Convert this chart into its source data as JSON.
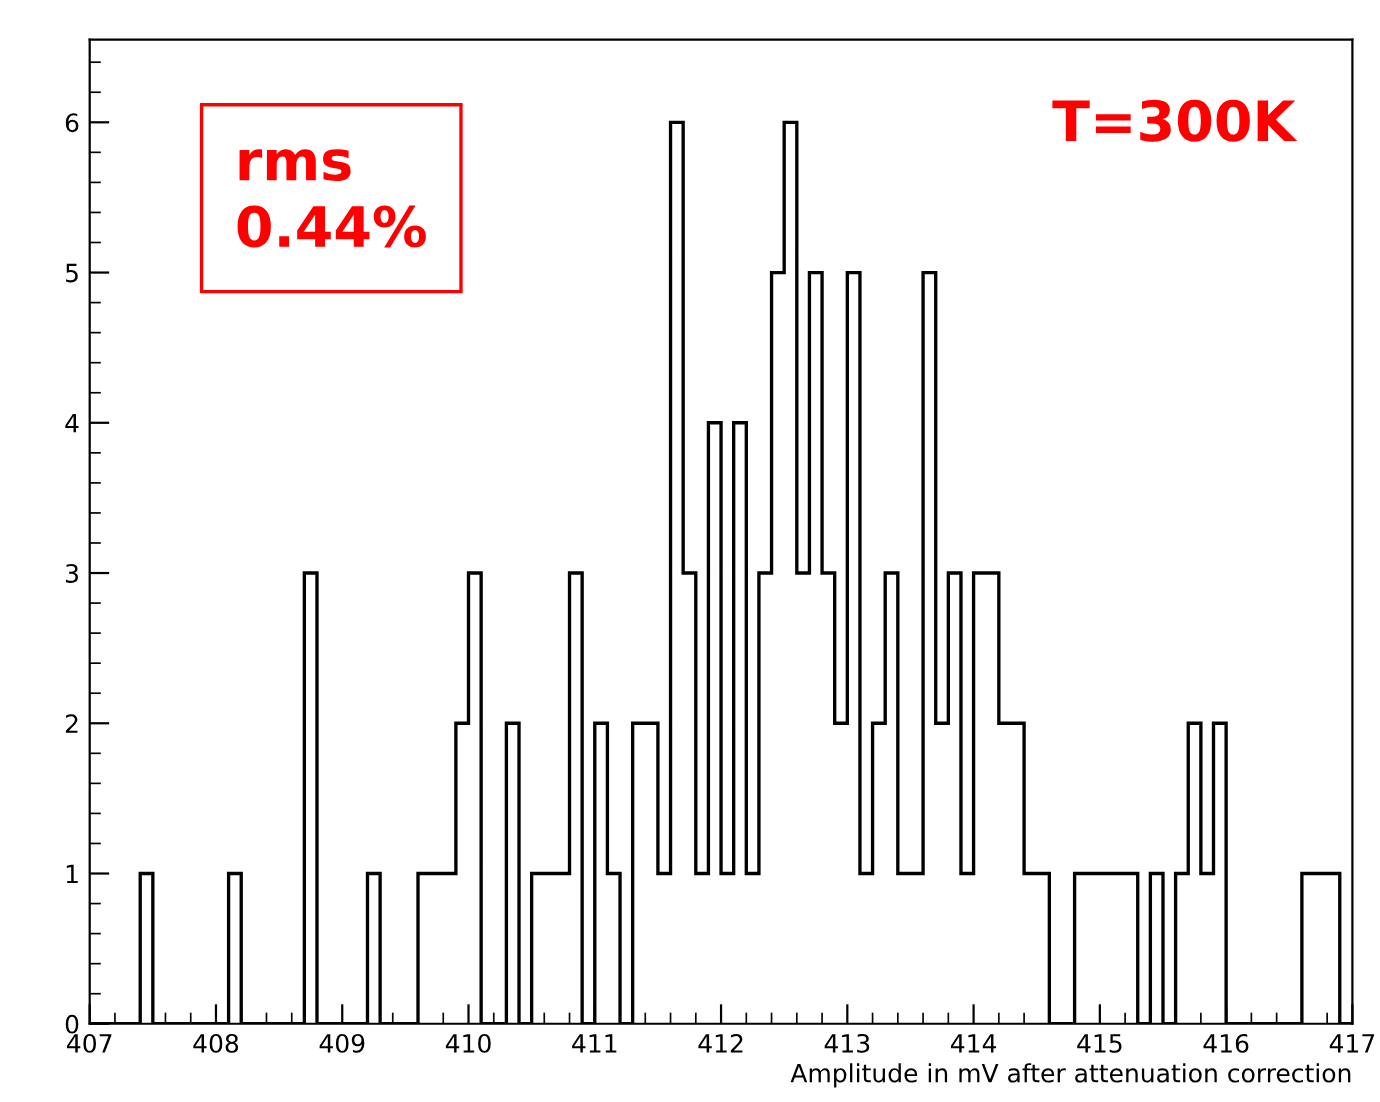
{
  "chart_data": {
    "type": "histogram",
    "xlabel": "Amplitude in mV after attenuation correction",
    "annotations": [
      "rms\n0.44%",
      "T=300K"
    ],
    "bins": [
      407,
      407.1,
      407.2,
      407.3,
      407.4,
      407.5,
      407.6,
      407.7,
      407.8,
      407.9,
      408,
      408.1,
      408.2,
      408.3,
      408.4,
      408.5,
      408.6,
      408.7,
      408.8,
      408.9,
      409,
      409.1,
      409.2,
      409.3,
      409.4,
      409.5,
      409.6,
      409.7,
      409.8,
      409.9,
      410,
      410.1,
      410.2,
      410.3,
      410.4,
      410.5,
      410.6,
      410.7,
      410.8,
      410.9,
      411,
      411.1,
      411.2,
      411.3,
      411.4,
      411.5,
      411.6,
      411.7,
      411.8,
      411.9,
      412,
      412.1,
      412.2,
      412.3,
      412.4,
      412.5,
      412.6,
      412.7,
      412.8,
      412.9,
      413,
      413.1,
      413.2,
      413.3,
      413.4,
      413.5,
      413.6,
      413.7,
      413.8,
      413.9,
      414,
      414.1,
      414.2,
      414.3,
      414.4,
      414.5,
      414.6,
      414.7,
      414.8,
      414.9,
      415,
      415.1,
      415.2,
      415.3,
      415.4,
      415.5,
      415.6,
      415.7,
      415.8,
      415.9,
      416,
      416.1,
      416.2,
      416.3,
      416.4,
      416.5,
      416.6,
      416.7,
      416.8,
      416.9,
      417
    ],
    "values": [
      0,
      0,
      0,
      0,
      1,
      0,
      0,
      0,
      0,
      0,
      0,
      1,
      0,
      0,
      0,
      0,
      0,
      3,
      0,
      0,
      0,
      0,
      1,
      0,
      0,
      0,
      1,
      1,
      1,
      2,
      3,
      0,
      0,
      2,
      0,
      1,
      1,
      1,
      3,
      0,
      2,
      1,
      0,
      2,
      2,
      1,
      6,
      3,
      1,
      4,
      1,
      4,
      1,
      3,
      5,
      6,
      3,
      5,
      3,
      2,
      5,
      1,
      2,
      3,
      1,
      1,
      5,
      2,
      3,
      1,
      3,
      3,
      2,
      2,
      1,
      1,
      0,
      0,
      1,
      1,
      1,
      1,
      1,
      0,
      1,
      0,
      1,
      2,
      1,
      2,
      0,
      0,
      0,
      0,
      0,
      0,
      1,
      1,
      1,
      0
    ],
    "color": "#000000",
    "xlim": [
      407,
      417
    ],
    "xticks": [
      407,
      408,
      409,
      410,
      411,
      412,
      413,
      414,
      415,
      416,
      417
    ],
    "ylim": [
      0,
      6.55
    ],
    "yticks": [
      0,
      1,
      2,
      3,
      4,
      5,
      6
    ],
    "grid": false,
    "legend": false
  }
}
